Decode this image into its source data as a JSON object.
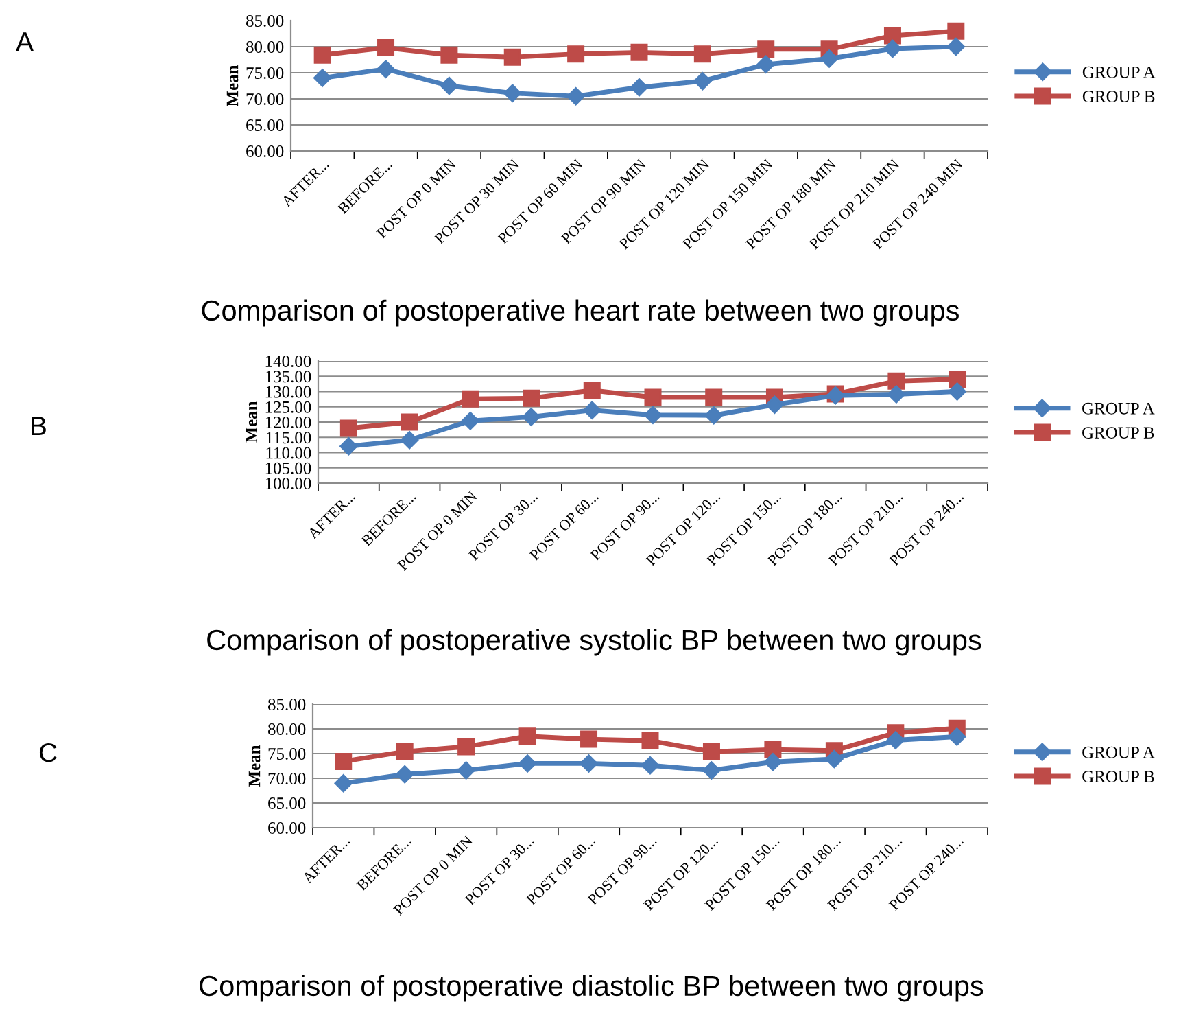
{
  "chart_data": [
    {
      "type": "line",
      "title": "Comparison of postoperative heart rate between two groups",
      "ylabel": "Mean",
      "annotations": [
        "A"
      ],
      "categories": [
        "AFTER...",
        "BEFORE...",
        "POST OP 0 MIN",
        "POST OP 30 MIN",
        "POST OP 60 MIN",
        "POST OP 90 MIN",
        "POST OP 120 MIN",
        "POST OP 150 MIN",
        "POST OP 180 MIN",
        "POST OP 210 MIN",
        "POST OP 240 MIN"
      ],
      "series": [
        {
          "name": "GROUP A",
          "color": "#4a7ebb",
          "marker": "diamond",
          "values": [
            74.0,
            75.7,
            72.5,
            71.1,
            70.5,
            72.2,
            73.4,
            76.6,
            77.7,
            79.6,
            80.0
          ]
        },
        {
          "name": "GROUP B",
          "color": "#be4b48",
          "marker": "square",
          "values": [
            78.4,
            79.8,
            78.4,
            78.0,
            78.6,
            78.9,
            78.6,
            79.5,
            79.5,
            82.1,
            83.0
          ]
        }
      ],
      "ylim": [
        60,
        85
      ],
      "yticks": [
        {
          "value": 60,
          "label": "60.00"
        },
        {
          "value": 65,
          "label": "65.00"
        },
        {
          "value": 70,
          "label": "70.00"
        },
        {
          "value": 75,
          "label": "75.00"
        },
        {
          "value": 80,
          "label": "80.00"
        },
        {
          "value": 85,
          "label": "85.00"
        }
      ],
      "grid": "y",
      "legend": "right"
    },
    {
      "type": "line",
      "title": "Comparison of postoperative systolic BP between two groups",
      "ylabel": "Mean",
      "annotations": [
        "B"
      ],
      "categories": [
        "AFTER...",
        "BEFORE...",
        "POST OP 0 MIN",
        "POST OP 30...",
        "POST OP 60...",
        "POST OP 90...",
        "POST OP 120...",
        "POST OP 150...",
        "POST OP 180...",
        "POST OP 210...",
        "POST OP 240..."
      ],
      "series": [
        {
          "name": "GROUP A",
          "color": "#4a7ebb",
          "marker": "diamond",
          "values": [
            112.1,
            114.1,
            120.4,
            121.7,
            123.9,
            122.3,
            122.2,
            125.7,
            128.7,
            129.1,
            130.0
          ]
        },
        {
          "name": "GROUP B",
          "color": "#be4b48",
          "marker": "square",
          "values": [
            118.0,
            120.0,
            127.6,
            127.8,
            130.4,
            128.1,
            128.1,
            128.1,
            129.2,
            133.4,
            134.0
          ]
        }
      ],
      "ylim": [
        100,
        140
      ],
      "yticks": [
        {
          "value": 100,
          "label": "100.00"
        },
        {
          "value": 105,
          "label": "105.00"
        },
        {
          "value": 110,
          "label": "110.00"
        },
        {
          "value": 115,
          "label": "115.00"
        },
        {
          "value": 120,
          "label": "120.00"
        },
        {
          "value": 125,
          "label": "125.00"
        },
        {
          "value": 130,
          "label": "130.00"
        },
        {
          "value": 135,
          "label": "135.00"
        },
        {
          "value": 140,
          "label": "140.00"
        }
      ],
      "grid": "y",
      "legend": "right"
    },
    {
      "type": "line",
      "title": "Comparison of postoperative diastolic BP between two groups",
      "ylabel": "Mean",
      "annotations": [
        "C"
      ],
      "categories": [
        "AFTER...",
        "BEFORE...",
        "POST OP 0 MIN",
        "POST OP 30...",
        "POST OP 60...",
        "POST OP 90...",
        "POST OP 120...",
        "POST OP 150...",
        "POST OP 180...",
        "POST OP 210...",
        "POST OP 240..."
      ],
      "series": [
        {
          "name": "GROUP A",
          "color": "#4a7ebb",
          "marker": "diamond",
          "values": [
            69.0,
            70.8,
            71.6,
            73.0,
            73.0,
            72.6,
            71.6,
            73.3,
            73.9,
            77.7,
            78.4
          ]
        },
        {
          "name": "GROUP B",
          "color": "#be4b48",
          "marker": "square",
          "values": [
            73.4,
            75.4,
            76.4,
            78.5,
            77.9,
            77.6,
            75.4,
            75.8,
            75.6,
            79.2,
            80.1
          ]
        }
      ],
      "ylim": [
        60,
        85
      ],
      "yticks": [
        {
          "value": 60,
          "label": "60.00"
        },
        {
          "value": 65,
          "label": "65.00"
        },
        {
          "value": 70,
          "label": "70.00"
        },
        {
          "value": 75,
          "label": "75.00"
        },
        {
          "value": 80,
          "label": "80.00"
        },
        {
          "value": 85,
          "label": "85.00"
        }
      ],
      "grid": "y",
      "legend": "right"
    }
  ]
}
